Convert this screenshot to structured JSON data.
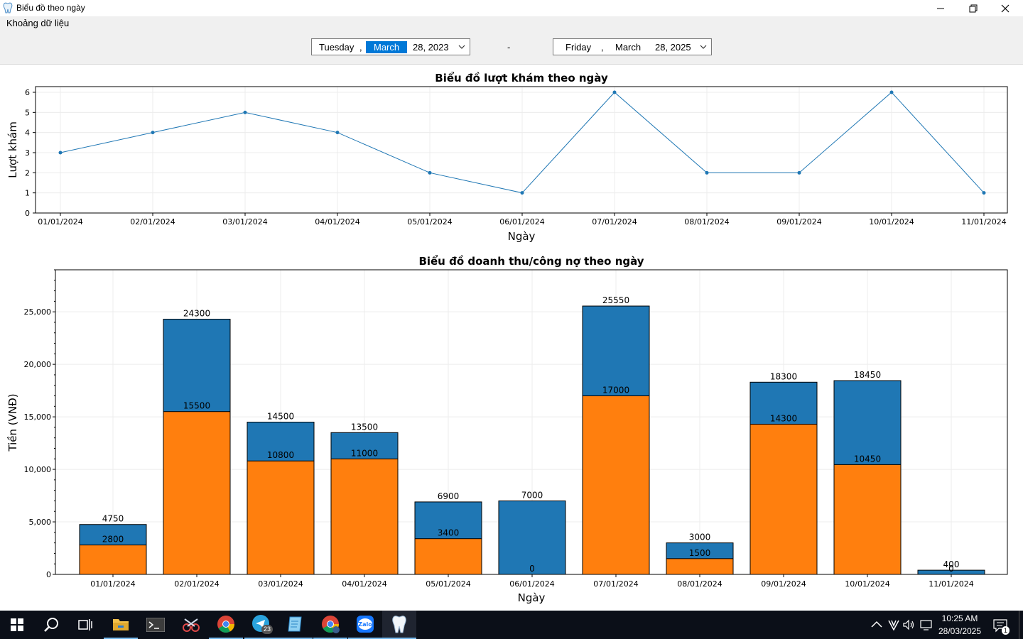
{
  "window": {
    "title": "Biểu đồ theo ngày"
  },
  "filter": {
    "label": "Khoảng dữ liệu",
    "separator": "-",
    "from": {
      "weekday": "Tuesday",
      "comma": ",",
      "month": "March",
      "daymonth": "28, 2023"
    },
    "to": {
      "weekday": "Friday",
      "comma": ",",
      "month": "March",
      "daymonth": "28, 2025"
    }
  },
  "chart_data": [
    {
      "type": "line",
      "title": "Biểu đồ lượt khám theo ngày",
      "xlabel": "Ngày",
      "ylabel": "Lượt khám",
      "x": [
        "01/01/2024",
        "02/01/2024",
        "03/01/2024",
        "04/01/2024",
        "05/01/2024",
        "06/01/2024",
        "07/01/2024",
        "08/01/2024",
        "09/01/2024",
        "10/01/2024",
        "11/01/2024"
      ],
      "values": [
        3,
        4,
        5,
        4,
        2,
        1,
        6,
        2,
        2,
        6,
        1
      ],
      "ylim": [
        0,
        6
      ],
      "yticks": [
        "0",
        "1",
        "2",
        "3",
        "4",
        "5",
        "6"
      ],
      "grid": true,
      "color": "#1f77b4"
    },
    {
      "type": "bar",
      "title": "Biểu đồ doanh thu/công nợ theo ngày",
      "xlabel": "Ngày",
      "ylabel": "Tiền (VNĐ)",
      "categories": [
        "01/01/2024",
        "02/01/2024",
        "03/01/2024",
        "04/01/2024",
        "05/01/2024",
        "06/01/2024",
        "07/01/2024",
        "08/01/2024",
        "09/01/2024",
        "10/01/2024",
        "11/01/2024"
      ],
      "series": [
        {
          "values": [
            4750,
            24300,
            14500,
            13500,
            6900,
            7000,
            25550,
            3000,
            18300,
            18450,
            400
          ],
          "color": "#1f77b4"
        },
        {
          "values": [
            2800,
            15500,
            10800,
            11000,
            3400,
            0,
            17000,
            1500,
            14300,
            10450,
            0
          ],
          "color": "#ff7f0e"
        }
      ],
      "ylim": [
        0,
        29000
      ],
      "yticks": [
        "0",
        "5,000",
        "10,000",
        "15,000",
        "20,000",
        "25,000"
      ],
      "grid": true
    }
  ],
  "taskbar": {
    "time": "10:25 AM",
    "date": "28/03/2025",
    "telegram_badge": "23",
    "zalo_label": "Zalo",
    "notification_count": "1",
    "icons": [
      "windows-start-icon",
      "search-icon",
      "task-view-icon",
      "file-explorer-icon",
      "terminal-icon",
      "snipping-tool-icon",
      "chrome-icon",
      "telegram-icon",
      "notepad-icon",
      "chrome-profile-icon",
      "zalo-icon",
      "tooth-app-icon"
    ]
  }
}
